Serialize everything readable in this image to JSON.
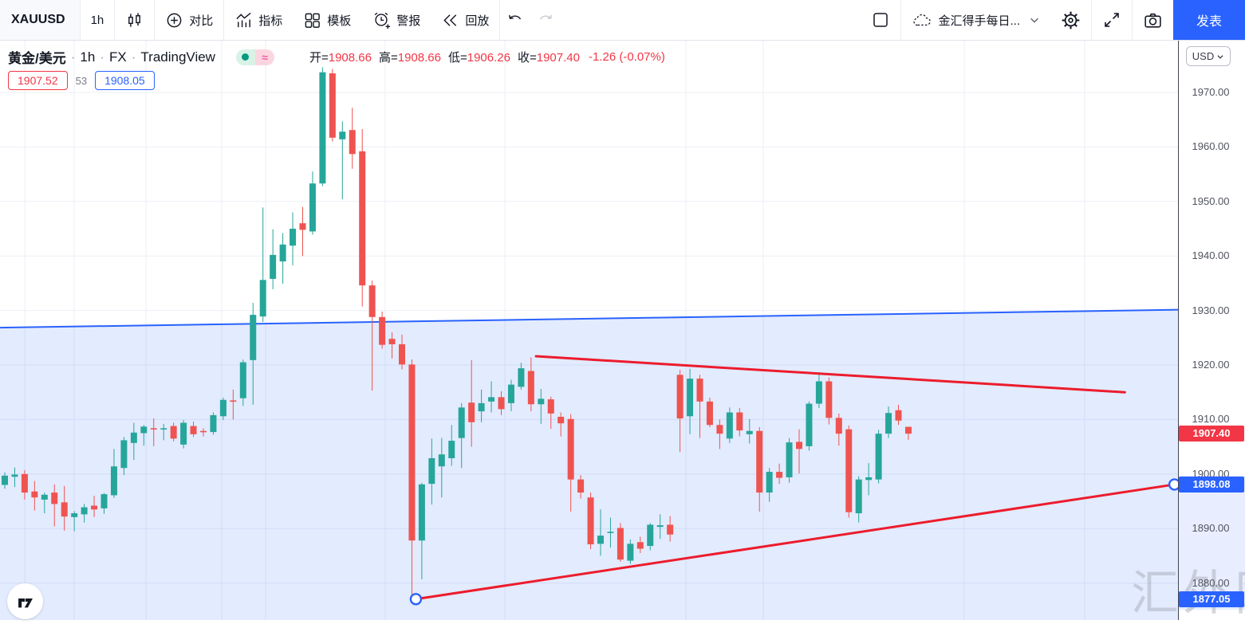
{
  "toolbar": {
    "symbol": "XAUUSD",
    "interval": "1h",
    "compare": "对比",
    "indicators": "指标",
    "templates": "模板",
    "alert": "警报",
    "replay": "回放",
    "layout_name": "金汇得手每日...",
    "publish": "发表"
  },
  "legend": {
    "symbol_title": "黄金/美元",
    "sep": "·",
    "interval": "1h",
    "exchange": "FX",
    "provider": "TradingView",
    "pill_approx": "≈",
    "ohlc": {
      "o_label": "开=",
      "open": "1908.66",
      "h_label": "高=",
      "high": "1908.66",
      "l_label": "低=",
      "low": "1906.26",
      "c_label": "收=",
      "close": "1907.40",
      "change": "-1.26 (-0.07%)"
    }
  },
  "quote": {
    "sell": "1907.52",
    "spread": "53",
    "buy": "1908.05"
  },
  "axis": {
    "currency": "USD"
  },
  "watermark": {
    "text": "汇外网"
  },
  "chart_data": {
    "type": "candlestick",
    "symbol": "XAUUSD",
    "interval": "1h",
    "ylim": [
      1873.2,
      1979.4
    ],
    "grid_prices": [
      1970,
      1960,
      1950,
      1940,
      1930,
      1920,
      1910,
      1900,
      1890,
      1880
    ],
    "up_color": "#26a69a",
    "down_color": "#ef5350",
    "grid_color": "#eceff5",
    "candles": [
      [
        1898.0,
        1900.3,
        1897.3,
        1899.7
      ],
      [
        1899.5,
        1901.2,
        1897.6,
        1899.9
      ],
      [
        1900.0,
        1900.7,
        1895.3,
        1896.6
      ],
      [
        1896.8,
        1898.7,
        1893.3,
        1895.7
      ],
      [
        1895.3,
        1896.6,
        1892.8,
        1896.2
      ],
      [
        1896.6,
        1898.1,
        1890.4,
        1894.5
      ],
      [
        1894.8,
        1897.8,
        1889.6,
        1892.2
      ],
      [
        1892.1,
        1893.2,
        1889.5,
        1892.8
      ],
      [
        1892.6,
        1894.5,
        1891.1,
        1893.9
      ],
      [
        1894.2,
        1896.0,
        1892.1,
        1893.5
      ],
      [
        1893.7,
        1896.5,
        1892.7,
        1896.3
      ],
      [
        1896.1,
        1904.6,
        1895.6,
        1901.4
      ],
      [
        1901.1,
        1906.8,
        1899.8,
        1906.2
      ],
      [
        1905.7,
        1909.4,
        1902.6,
        1907.6
      ],
      [
        1907.5,
        1909.0,
        1905.2,
        1908.7
      ],
      [
        1908.4,
        1910.2,
        1905.1,
        1908.2
      ],
      [
        1908.2,
        1909.2,
        1906.2,
        1908.4
      ],
      [
        1908.8,
        1909.4,
        1906.0,
        1906.5
      ],
      [
        1905.4,
        1909.9,
        1904.7,
        1909.4
      ],
      [
        1908.8,
        1909.6,
        1906.8,
        1907.3
      ],
      [
        1907.9,
        1908.4,
        1906.9,
        1907.7
      ],
      [
        1907.7,
        1911.3,
        1907.2,
        1910.8
      ],
      [
        1910.6,
        1914.0,
        1909.9,
        1913.6
      ],
      [
        1913.5,
        1915.5,
        1910.0,
        1913.4
      ],
      [
        1913.9,
        1921.0,
        1912.5,
        1920.5
      ],
      [
        1920.9,
        1931.4,
        1912.7,
        1929.2
      ],
      [
        1928.9,
        1948.9,
        1927.9,
        1935.6
      ],
      [
        1935.8,
        1944.9,
        1933.9,
        1940.2
      ],
      [
        1939.0,
        1944.2,
        1934.9,
        1942.1
      ],
      [
        1941.9,
        1948.0,
        1938.3,
        1945.0
      ],
      [
        1946.0,
        1949.0,
        1940.0,
        1944.8
      ],
      [
        1944.5,
        1955.5,
        1943.9,
        1953.3
      ],
      [
        1953.3,
        1974.6,
        1952.8,
        1973.7
      ],
      [
        1973.5,
        1974.3,
        1961.0,
        1961.7
      ],
      [
        1961.4,
        1964.7,
        1950.4,
        1962.8
      ],
      [
        1963.1,
        1967.2,
        1956.0,
        1958.7
      ],
      [
        1959.2,
        1963.3,
        1930.7,
        1934.6
      ],
      [
        1934.6,
        1935.5,
        1915.3,
        1928.8
      ],
      [
        1928.8,
        1929.8,
        1923.0,
        1923.7
      ],
      [
        1924.8,
        1926.0,
        1921.2,
        1923.8
      ],
      [
        1923.8,
        1925.6,
        1919.2,
        1920.1
      ],
      [
        1920.1,
        1921.0,
        1877.1,
        1887.8
      ],
      [
        1887.8,
        1898.4,
        1880.7,
        1898.1
      ],
      [
        1898.2,
        1906.5,
        1894.4,
        1902.9
      ],
      [
        1901.4,
        1906.6,
        1895.7,
        1903.6
      ],
      [
        1902.9,
        1909.0,
        1901.5,
        1906.1
      ],
      [
        1906.6,
        1913.0,
        1901.1,
        1912.2
      ],
      [
        1913.1,
        1920.9,
        1905.0,
        1909.5
      ],
      [
        1911.5,
        1915.5,
        1909.5,
        1913.0
      ],
      [
        1913.3,
        1917.0,
        1911.3,
        1914.1
      ],
      [
        1914.1,
        1915.2,
        1910.8,
        1911.9
      ],
      [
        1913.0,
        1917.3,
        1911.5,
        1916.4
      ],
      [
        1916.0,
        1920.4,
        1915.5,
        1919.4
      ],
      [
        1918.9,
        1921.4,
        1911.5,
        1912.8
      ],
      [
        1912.8,
        1915.6,
        1909.2,
        1913.8
      ],
      [
        1913.7,
        1914.2,
        1908.3,
        1911.1
      ],
      [
        1910.5,
        1911.3,
        1906.9,
        1909.3
      ],
      [
        1910.1,
        1911.0,
        1893.1,
        1899.0
      ],
      [
        1899.0,
        1899.8,
        1895.5,
        1896.6
      ],
      [
        1895.7,
        1896.6,
        1886.2,
        1887.1
      ],
      [
        1887.2,
        1893.5,
        1885.0,
        1888.7
      ],
      [
        1889.2,
        1892.0,
        1886.5,
        1889.4
      ],
      [
        1890.1,
        1891.0,
        1883.9,
        1884.3
      ],
      [
        1884.1,
        1888.0,
        1883.5,
        1887.2
      ],
      [
        1887.5,
        1888.5,
        1885.5,
        1886.3
      ],
      [
        1886.8,
        1891.0,
        1886.0,
        1890.7
      ],
      [
        1890.3,
        1892.6,
        1888.1,
        1890.6
      ],
      [
        1890.7,
        1892.3,
        1887.6,
        1888.9
      ],
      [
        1918.2,
        1919.1,
        1904.0,
        1910.2
      ],
      [
        1910.6,
        1919.3,
        1907.3,
        1917.5
      ],
      [
        1917.5,
        1918.2,
        1906.6,
        1913.3
      ],
      [
        1913.3,
        1914.0,
        1908.6,
        1909.0
      ],
      [
        1909.0,
        1910.0,
        1904.6,
        1907.4
      ],
      [
        1906.5,
        1912.2,
        1905.7,
        1911.3
      ],
      [
        1911.3,
        1912.1,
        1906.9,
        1908.0
      ],
      [
        1907.3,
        1910.1,
        1905.6,
        1907.9
      ],
      [
        1907.9,
        1908.6,
        1893.1,
        1896.6
      ],
      [
        1896.6,
        1901.1,
        1894.9,
        1900.4
      ],
      [
        1900.4,
        1901.9,
        1898.2,
        1899.3
      ],
      [
        1899.4,
        1906.6,
        1898.4,
        1905.8
      ],
      [
        1905.9,
        1908.2,
        1900.1,
        1904.6
      ],
      [
        1905.1,
        1913.3,
        1904.3,
        1912.9
      ],
      [
        1912.9,
        1918.7,
        1912.1,
        1917.0
      ],
      [
        1917.0,
        1917.7,
        1909.1,
        1910.3
      ],
      [
        1910.3,
        1911.1,
        1905.2,
        1907.4
      ],
      [
        1908.2,
        1908.9,
        1892.0,
        1893.0
      ],
      [
        1892.8,
        1899.6,
        1891.1,
        1899.0
      ],
      [
        1898.9,
        1902.0,
        1896.1,
        1899.4
      ],
      [
        1899.0,
        1908.1,
        1898.3,
        1907.4
      ],
      [
        1907.4,
        1912.4,
        1906.6,
        1911.2
      ],
      [
        1911.7,
        1912.7,
        1909.0,
        1909.8
      ],
      [
        1908.66,
        1908.66,
        1906.26,
        1907.4
      ]
    ],
    "trendlines": [
      {
        "name": "macro-trendline",
        "color": "#2962ff",
        "width": 2,
        "from": {
          "bar": -0.6,
          "price": 1926.85
        },
        "to": {
          "bar": 118.6,
          "price": 1930.15
        },
        "fill_below": "rgba(41,98,255,0.13)",
        "handles": false
      },
      {
        "name": "resistance-trendline",
        "color": "#ec1c2c",
        "width": 3,
        "from": {
          "bar": 53.5,
          "price": 1921.6
        },
        "to": {
          "bar": 112.8,
          "price": 1915.0
        },
        "handles": false
      },
      {
        "name": "support-trendline",
        "color": "#ec1c2c",
        "width": 3,
        "from": {
          "bar": 41.4,
          "price": 1877.05
        },
        "to": {
          "bar": 117.8,
          "price": 1898.08
        },
        "handles": true
      }
    ],
    "price_badges": [
      {
        "name": "last-price-badge",
        "price": 1907.4,
        "label": "1907.40",
        "bg": "#f23645"
      },
      {
        "name": "trendline-end-price-badge",
        "price": 1898.08,
        "label": "1898.08",
        "bg": "#2962ff"
      },
      {
        "name": "trendline-start-price-badge",
        "price": 1877.05,
        "label": "1877.05",
        "bg": "#2962ff"
      }
    ],
    "axis_highlight_band": {
      "from": 1898.08,
      "to": 1877.05
    }
  }
}
